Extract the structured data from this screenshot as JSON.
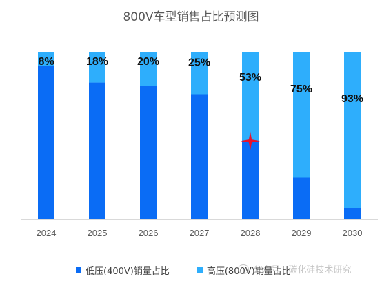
{
  "chart_data": {
    "type": "bar",
    "stacked": true,
    "title": "800V车型销售占比预测图",
    "categories": [
      "2024",
      "2025",
      "2026",
      "2027",
      "2028",
      "2029",
      "2030"
    ],
    "series": [
      {
        "name": "低压(400V)销量占比",
        "values": [
          92,
          82,
          80,
          75,
          47,
          25,
          7
        ],
        "color": "#0a6cf5"
      },
      {
        "name": "高压(800V)销量占比",
        "values": [
          8,
          18,
          20,
          25,
          53,
          75,
          93
        ],
        "color": "#2eaefc"
      }
    ],
    "data_labels": [
      "8%",
      "18%",
      "20%",
      "25%",
      "53%",
      "75%",
      "93%"
    ],
    "ylim": [
      0,
      100
    ],
    "grid": false,
    "legend_position": "bottom",
    "annotation_marker": {
      "category": "2028",
      "value": 47,
      "color": "#e8112d"
    }
  },
  "watermark": {
    "text": "公众号 · 碳化硅技术研究"
  }
}
